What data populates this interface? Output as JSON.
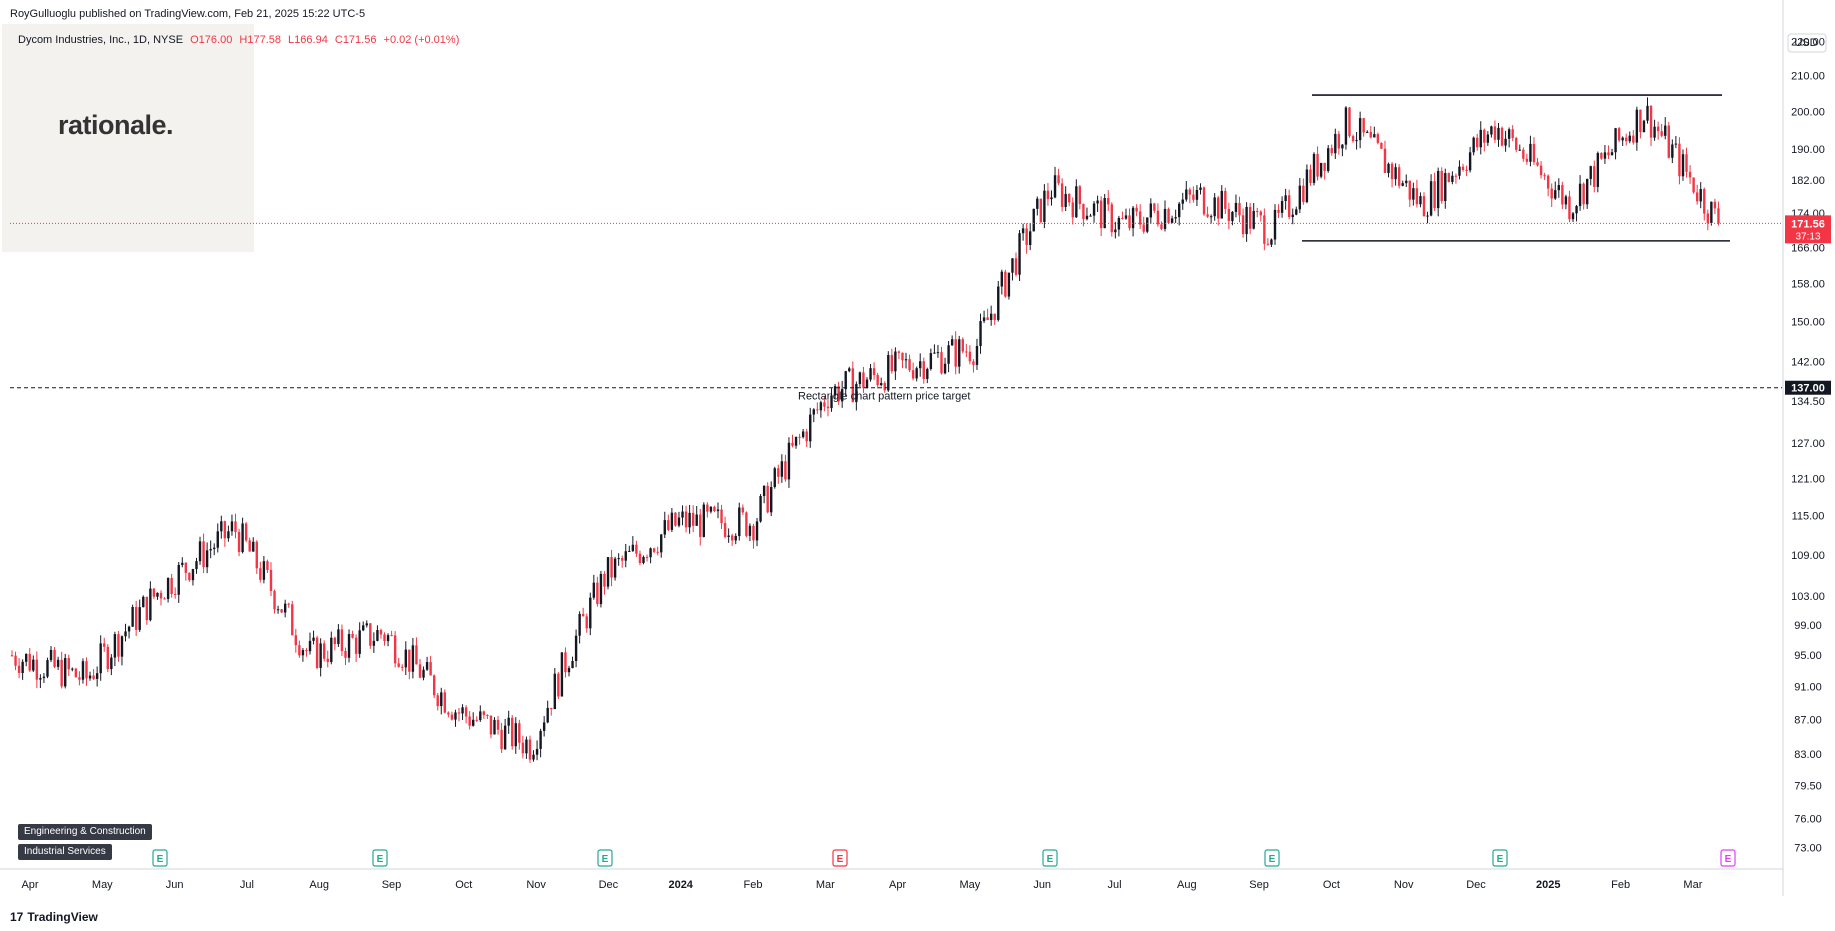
{
  "header": {
    "publisher": "RoyGulluoglu published on TradingView.com,",
    "timestamp": "Feb 21, 2025 15:22 UTC-5"
  },
  "legend": {
    "symbol": "Dycom Industries, Inc., 1D, NYSE",
    "open": "O176.00",
    "high": "H177.58",
    "low": "L166.94",
    "close": "C171.56",
    "change": "+0.02 (+0.01%)"
  },
  "watermark": {
    "text": "rationale."
  },
  "currency": "USD",
  "sectors": [
    "Engineering & Construction",
    "Industrial Services"
  ],
  "footer": {
    "brand": "TradingView"
  },
  "colors": {
    "up": "#131722",
    "down": "#f23645",
    "pink_event": "#e040fb"
  },
  "chart_data": {
    "type": "candlestick",
    "title": "",
    "xlabel": "",
    "ylabel": "",
    "y_axis_labels": [
      "220.00",
      "210.00",
      "200.00",
      "190.00",
      "182.00",
      "174.00",
      "166.00",
      "158.00",
      "150.00",
      "142.00",
      "134.50",
      "127.00",
      "121.00",
      "115.00",
      "109.00",
      "103.00",
      "99.00",
      "95.00",
      "91.00",
      "87.00",
      "83.00",
      "79.50",
      "76.00",
      "73.00"
    ],
    "x_axis_labels": [
      "Apr",
      "May",
      "Jun",
      "Jul",
      "Aug",
      "Sep",
      "Oct",
      "Nov",
      "Dec",
      "2024",
      "Feb",
      "Mar",
      "Apr",
      "May",
      "Jun",
      "Jul",
      "Aug",
      "Sep",
      "Oct",
      "Nov",
      "Dec",
      "2025",
      "Feb",
      "Mar"
    ],
    "ylim": [
      71,
      226
    ],
    "log_scale": true,
    "current_price": {
      "value": 171.56,
      "label": "171.56",
      "countdown": "37:13"
    },
    "target_line": {
      "value": 137.0,
      "label": "137.00",
      "annotation": "Rectangle chart pattern price target"
    },
    "rectangle_pattern": {
      "top": 204.5,
      "bottom": 167.5
    },
    "price_path": [
      {
        "date": "Apr",
        "close": 95
      },
      {
        "date": "May",
        "close": 92
      },
      {
        "date": "Jun",
        "close": 104
      },
      {
        "date": "Jul",
        "close": 113
      },
      {
        "date": "Aug",
        "close": 95
      },
      {
        "date": "Sep",
        "close": 98
      },
      {
        "date": "Oct",
        "close": 88
      },
      {
        "date": "Nov",
        "close": 84
      },
      {
        "date": "Dec",
        "close": 106
      },
      {
        "date": "2024",
        "close": 114
      },
      {
        "date": "Feb",
        "close": 114
      },
      {
        "date": "Mar",
        "close": 136
      },
      {
        "date": "Apr",
        "close": 141
      },
      {
        "date": "May",
        "close": 145
      },
      {
        "date": "Jun",
        "close": 180
      },
      {
        "date": "Jul",
        "close": 171
      },
      {
        "date": "Aug",
        "close": 178
      },
      {
        "date": "Sep",
        "close": 170
      },
      {
        "date": "Oct",
        "close": 197
      },
      {
        "date": "Nov",
        "close": 176
      },
      {
        "date": "Dec",
        "close": 196
      },
      {
        "date": "2025",
        "close": 176
      },
      {
        "date": "Feb",
        "close": 200
      },
      {
        "date": "Feb 21",
        "close": 171.56
      }
    ],
    "events": [
      {
        "type": "E",
        "color": "#26a69a"
      },
      {
        "type": "E",
        "color": "#26a69a"
      },
      {
        "type": "E",
        "color": "#26a69a"
      },
      {
        "type": "E",
        "color": "#f23645"
      },
      {
        "type": "E",
        "color": "#26a69a"
      },
      {
        "type": "E",
        "color": "#26a69a"
      },
      {
        "type": "E",
        "color": "#26a69a"
      },
      {
        "type": "E",
        "color": "#e040fb"
      }
    ]
  }
}
